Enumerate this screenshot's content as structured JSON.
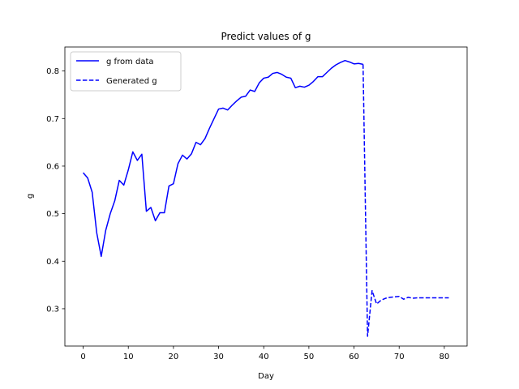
{
  "chart_data": {
    "type": "line",
    "title": "Predict values of g",
    "xlabel": "Day",
    "ylabel": "g",
    "xlim": [
      -4.05,
      85.05
    ],
    "ylim": [
      0.2215,
      0.8505
    ],
    "xticks": [
      0,
      10,
      20,
      30,
      40,
      50,
      60,
      70,
      80
    ],
    "yticks": [
      0.3,
      0.4,
      0.5,
      0.6,
      0.7,
      0.8
    ],
    "ytick_labels": [
      "0.3",
      "0.4",
      "0.5",
      "0.6",
      "0.7",
      "0.8"
    ],
    "grid": false,
    "legend_position": "top-left",
    "series": [
      {
        "name": "g from data",
        "color": "#0000ff",
        "style": "solid",
        "x": [
          0,
          1,
          2,
          3,
          4,
          5,
          6,
          7,
          8,
          9,
          10,
          11,
          12,
          13,
          14,
          15,
          16,
          17,
          18,
          19,
          20,
          21,
          22,
          23,
          24,
          25,
          26,
          27,
          28,
          29,
          30,
          31,
          32,
          33,
          34,
          35,
          36,
          37,
          38,
          39,
          40,
          41,
          42,
          43,
          44,
          45,
          46,
          47,
          48,
          49,
          50,
          51,
          52,
          53,
          54,
          55,
          56,
          57,
          58,
          59,
          60,
          61,
          62
        ],
        "y": [
          0.586,
          0.575,
          0.545,
          0.46,
          0.41,
          0.465,
          0.5,
          0.527,
          0.57,
          0.56,
          0.592,
          0.63,
          0.612,
          0.625,
          0.505,
          0.513,
          0.485,
          0.502,
          0.502,
          0.558,
          0.563,
          0.605,
          0.623,
          0.615,
          0.626,
          0.65,
          0.645,
          0.658,
          0.68,
          0.7,
          0.72,
          0.722,
          0.718,
          0.728,
          0.737,
          0.745,
          0.747,
          0.76,
          0.757,
          0.775,
          0.785,
          0.787,
          0.795,
          0.797,
          0.793,
          0.787,
          0.785,
          0.765,
          0.768,
          0.766,
          0.77,
          0.778,
          0.788,
          0.788,
          0.797,
          0.806,
          0.813,
          0.818,
          0.822,
          0.819,
          0.815,
          0.816,
          0.814
        ]
      },
      {
        "name": "Generated g",
        "color": "#0000ff",
        "style": "dashed",
        "x": [
          62,
          63,
          64,
          65,
          66,
          67,
          68,
          69,
          70,
          71,
          72,
          73,
          74,
          75,
          76,
          77,
          78,
          79,
          80,
          81
        ],
        "y": [
          0.814,
          0.242,
          0.338,
          0.31,
          0.318,
          0.322,
          0.324,
          0.325,
          0.326,
          0.32,
          0.324,
          0.322,
          0.323,
          0.323,
          0.323,
          0.323,
          0.323,
          0.323,
          0.323,
          0.323
        ]
      }
    ]
  }
}
